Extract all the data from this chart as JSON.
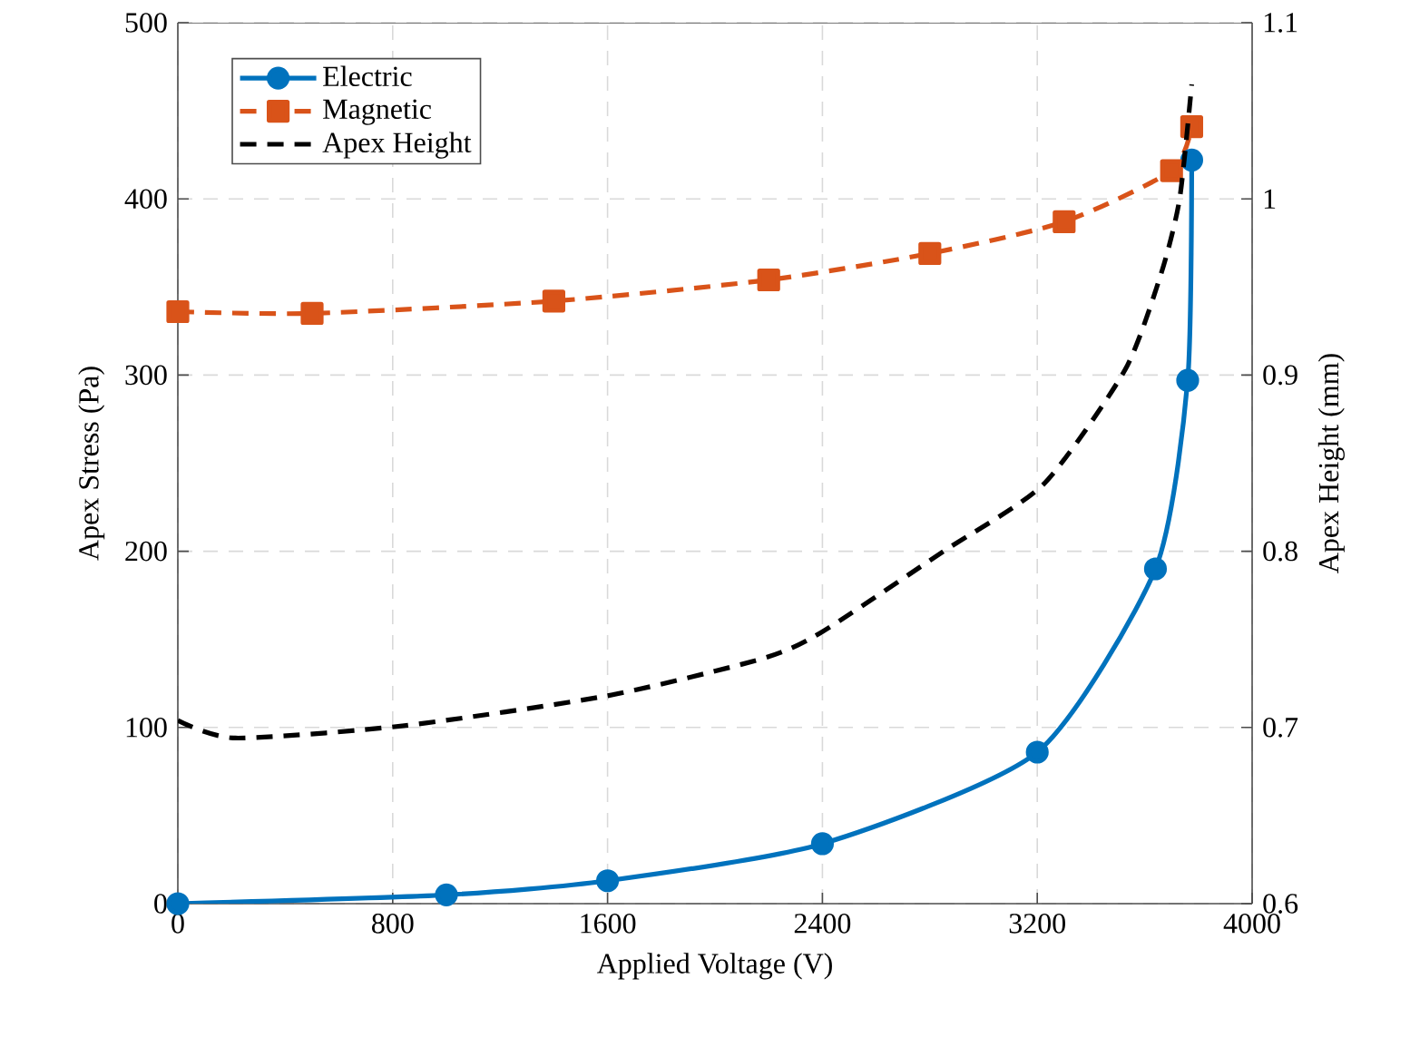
{
  "chart_data": {
    "type": "line",
    "xlabel": "Applied Voltage (V)",
    "ylabel": "Apex Stress (Pa)",
    "y2label": "Apex Height (mm)",
    "xlim": [
      0,
      4000
    ],
    "xticks": [
      0,
      800,
      1600,
      2400,
      3200,
      4000
    ],
    "ylim": [
      0,
      500
    ],
    "yticks": [
      0,
      100,
      200,
      300,
      400,
      500
    ],
    "y2lim": [
      0.6,
      1.1
    ],
    "y2ticks": [
      0.6,
      0.7,
      0.8,
      0.9,
      1,
      1.1
    ],
    "grid": true,
    "legend": "top left",
    "series": [
      {
        "name": "Electric",
        "color": "#0072bd",
        "marker": "circle",
        "line_style": "solid",
        "x": [
          0,
          1000,
          1600,
          2400,
          3200,
          3640,
          3760,
          3775
        ],
        "values": [
          0,
          5,
          13,
          34,
          86,
          190,
          297,
          422
        ]
      },
      {
        "name": "Magnetic",
        "color": "#d95319",
        "marker": "square",
        "line_style": "dashed",
        "x": [
          0,
          500,
          1400,
          2200,
          2800,
          3300,
          3700,
          3775
        ],
        "values": [
          336,
          335,
          342,
          354,
          369,
          387,
          416,
          441
        ]
      },
      {
        "name": "Apex Height",
        "color": "#000000",
        "marker": "none",
        "line_style": "dashed",
        "axis": "y2",
        "x": [
          0,
          214,
          843,
          1600,
          2175,
          2396,
          2851,
          3223,
          3527,
          3662,
          3730,
          3775
        ],
        "values": [
          0.704,
          0.694,
          0.701,
          0.718,
          0.739,
          0.754,
          0.8,
          0.838,
          0.903,
          0.958,
          1.0,
          1.065
        ]
      }
    ]
  }
}
